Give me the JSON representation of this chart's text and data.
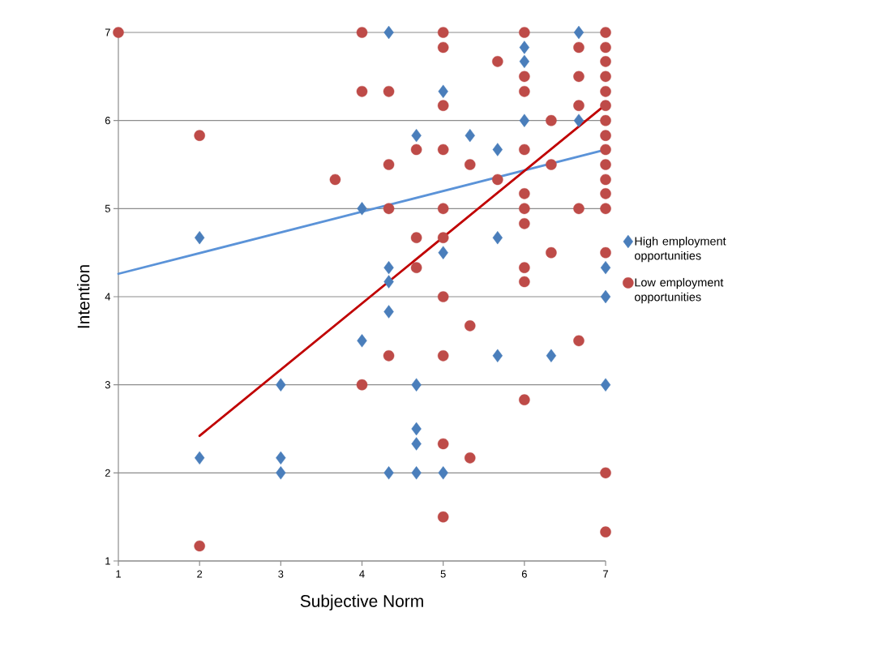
{
  "chart_data": {
    "type": "scatter",
    "xlabel": "Subjective Norm",
    "ylabel": "Intention",
    "xlim": [
      1,
      7
    ],
    "ylim": [
      1,
      7
    ],
    "xticks": [
      1,
      2,
      3,
      4,
      5,
      6,
      7
    ],
    "yticks": [
      1,
      2,
      3,
      4,
      5,
      6,
      7
    ],
    "grid": "y",
    "legend": "right",
    "series": [
      {
        "name": "High employment opportunities",
        "color": "#4a7ebb",
        "marker": "diamond",
        "x": [
          2,
          2,
          3,
          3,
          3,
          4,
          4,
          4.33,
          4.33,
          4.33,
          4.33,
          4.33,
          4.67,
          4.67,
          4.67,
          4.67,
          4.67,
          5,
          5,
          5,
          5.33,
          5.67,
          5.67,
          5.67,
          6,
          6,
          6,
          6.33,
          6.67,
          6.67,
          7,
          7,
          7
        ],
        "values": [
          4.67,
          2.17,
          3,
          2.17,
          2,
          5,
          3.5,
          7,
          4.33,
          4.17,
          3.83,
          2,
          5.83,
          3,
          2.5,
          2.33,
          2,
          6.33,
          4.5,
          2,
          5.83,
          5.67,
          4.67,
          3.33,
          6.83,
          6.67,
          6,
          3.33,
          7,
          6,
          4.33,
          4,
          3
        ]
      },
      {
        "name": "Low employment opportunities",
        "color": "#be4b48",
        "marker": "circle",
        "x": [
          1,
          2,
          2,
          3.67,
          4,
          4,
          4,
          4.33,
          4.33,
          4.33,
          4.33,
          4.67,
          4.67,
          4.67,
          5,
          5,
          5,
          5,
          5,
          5,
          5,
          5,
          5,
          5,
          5.33,
          5.33,
          5.33,
          5.67,
          5.67,
          6,
          6,
          6,
          6,
          6,
          6,
          6,
          6,
          6,
          6,
          6.33,
          6.33,
          6.33,
          6.67,
          6.67,
          6.67,
          6.67,
          6.67,
          7,
          7,
          7,
          7,
          7,
          7,
          7,
          7,
          7,
          7,
          7,
          7,
          7,
          7,
          7,
          7
        ],
        "values": [
          7,
          5.83,
          1.17,
          5.33,
          7,
          6.33,
          3,
          6.33,
          5.5,
          5,
          3.33,
          5.67,
          4.67,
          4.33,
          7,
          6.83,
          6.17,
          5.67,
          5,
          4.67,
          4,
          3.33,
          2.33,
          1.5,
          5.5,
          3.67,
          2.17,
          6.67,
          5.33,
          7,
          6.5,
          6.33,
          5.67,
          5.17,
          5,
          4.83,
          4.33,
          4.17,
          2.83,
          6,
          5.5,
          4.5,
          6.83,
          6.5,
          6.17,
          5,
          3.5,
          7,
          6.83,
          6.67,
          6.5,
          6.33,
          6.17,
          6,
          5.83,
          5.67,
          5.5,
          5.33,
          5.17,
          5,
          4.5,
          2,
          1.33
        ]
      },
      {
        "type": "line",
        "color": "#5b93d8",
        "marker": "none",
        "x": [
          1,
          7
        ],
        "values": [
          4.26,
          5.67
        ]
      },
      {
        "type": "line",
        "color": "#c00000",
        "marker": "none",
        "x": [
          2,
          7
        ],
        "values": [
          2.42,
          6.18
        ]
      }
    ]
  }
}
